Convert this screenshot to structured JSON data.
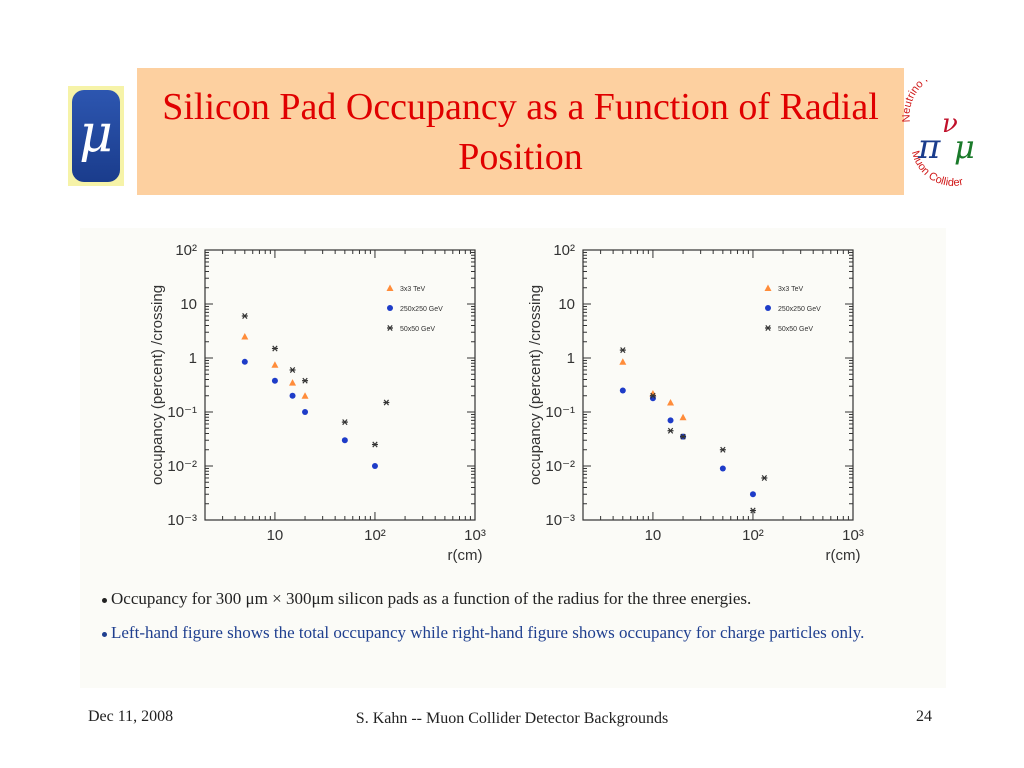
{
  "slide": {
    "title": "Silicon Pad Occupancy as a Function of Radial Position",
    "logo_left_symbol": "μ",
    "logo_right": {
      "top_text": "Neutrino Factory",
      "bottom_text": "Muon Collider",
      "letters": "π ν μ"
    },
    "caption1": "Occupancy  for 300 μm × 300μm silicon pads as a function of the radius for the three energies.",
    "caption2": "Left-hand figure shows the total occupancy while right-hand figure shows occupancy for charge particles only.",
    "footer": {
      "date": "Dec 11, 2008",
      "center": "S. Kahn -- Muon Collider Detector Backgrounds",
      "page": "24"
    },
    "colors": {
      "title": "#e00000",
      "title_bg": "#fdd0a0",
      "caption2": "#1f3f8f"
    }
  },
  "chart_data": [
    {
      "type": "scatter",
      "xlabel": "r(cm)",
      "ylabel": "occupancy (percent) /crossing",
      "xscale": "log",
      "yscale": "log",
      "xlim": [
        2,
        1000
      ],
      "ylim": [
        0.001,
        100
      ],
      "xticks": [
        10,
        100,
        1000
      ],
      "xtick_labels": [
        "10",
        "10²",
        "10³"
      ],
      "yticks": [
        0.001,
        0.01,
        0.1,
        1,
        10,
        100
      ],
      "ytick_labels": [
        "10⁻³",
        "10⁻²",
        "10⁻¹",
        "1",
        "10",
        "10²"
      ],
      "legend_position": "top-right",
      "series": [
        {
          "name": "3x3 TeV",
          "marker": "triangle",
          "color": "#ff8c3a",
          "x": [
            5,
            10,
            15,
            20
          ],
          "y": [
            2.5,
            0.75,
            0.35,
            0.2
          ]
        },
        {
          "name": "250x250 GeV",
          "marker": "circle",
          "color": "#1e3cc8",
          "x": [
            5,
            10,
            15,
            20,
            50,
            100
          ],
          "y": [
            0.85,
            0.38,
            0.2,
            0.1,
            0.03,
            0.01
          ]
        },
        {
          "name": "50x50 GeV",
          "marker": "star",
          "color": "#333333",
          "x": [
            5,
            10,
            15,
            20,
            50,
            100,
            130
          ],
          "y": [
            6,
            1.5,
            0.6,
            0.38,
            0.065,
            0.025,
            0.15
          ]
        }
      ]
    },
    {
      "type": "scatter",
      "xlabel": "r(cm)",
      "ylabel": "occupancy (percent) /crossing",
      "xscale": "log",
      "yscale": "log",
      "xlim": [
        2,
        1000
      ],
      "ylim": [
        0.001,
        100
      ],
      "xticks": [
        10,
        100,
        1000
      ],
      "xtick_labels": [
        "10",
        "10²",
        "10³"
      ],
      "yticks": [
        0.001,
        0.01,
        0.1,
        1,
        10,
        100
      ],
      "ytick_labels": [
        "10⁻³",
        "10⁻²",
        "10⁻¹",
        "1",
        "10",
        "10²"
      ],
      "legend_position": "top-right",
      "series": [
        {
          "name": "3x3 TeV",
          "marker": "triangle",
          "color": "#ff8c3a",
          "x": [
            5,
            10,
            15,
            20
          ],
          "y": [
            0.85,
            0.22,
            0.15,
            0.08
          ]
        },
        {
          "name": "250x250 GeV",
          "marker": "circle",
          "color": "#1e3cc8",
          "x": [
            5,
            10,
            15,
            20,
            50,
            100
          ],
          "y": [
            0.25,
            0.18,
            0.07,
            0.035,
            0.009,
            0.003
          ]
        },
        {
          "name": "50x50 GeV",
          "marker": "star",
          "color": "#333333",
          "x": [
            5,
            10,
            15,
            20,
            50,
            100,
            130
          ],
          "y": [
            1.4,
            0.2,
            0.045,
            0.035,
            0.02,
            0.0015,
            0.006
          ]
        }
      ]
    }
  ]
}
